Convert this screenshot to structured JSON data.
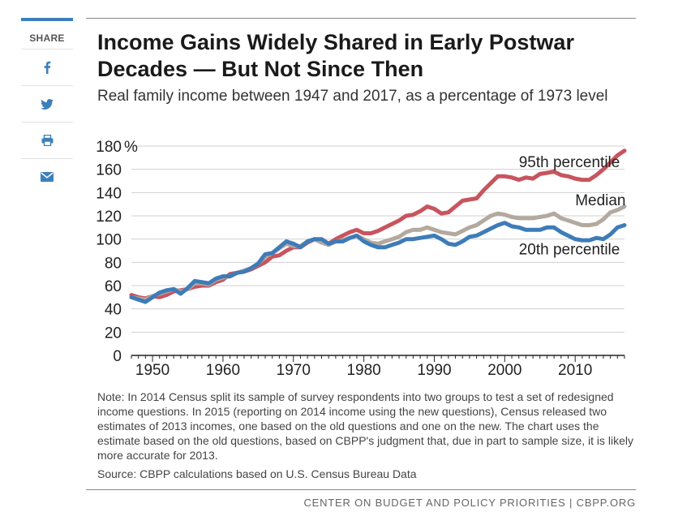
{
  "share": {
    "label": "SHARE",
    "buttons": [
      {
        "name": "facebook-icon"
      },
      {
        "name": "twitter-icon"
      },
      {
        "name": "print-icon"
      },
      {
        "name": "email-icon"
      }
    ],
    "icon_color": "#3d7fb9"
  },
  "header": {
    "title": "Income Gains Widely Shared in Early Postwar Decades — But Not Since Then",
    "subtitle": "Real family income between 1947 and 2017, as a percentage of 1973 level"
  },
  "chart_data": {
    "type": "line",
    "xlim": [
      1947,
      2017
    ],
    "ylim": [
      0,
      180
    ],
    "xticks": [
      1950,
      1960,
      1970,
      1980,
      1990,
      2000,
      2010
    ],
    "yticks": [
      0,
      20,
      40,
      60,
      80,
      100,
      120,
      140,
      160,
      180
    ],
    "ytick_suffix": "%",
    "grid": "horizontal",
    "series": [
      {
        "name": "95th percentile",
        "color": "#c8545e",
        "x": [
          1947,
          1948,
          1949,
          1950,
          1951,
          1952,
          1953,
          1954,
          1955,
          1956,
          1957,
          1958,
          1959,
          1960,
          1961,
          1962,
          1963,
          1964,
          1965,
          1966,
          1967,
          1968,
          1969,
          1970,
          1971,
          1972,
          1973,
          1974,
          1975,
          1976,
          1977,
          1978,
          1979,
          1980,
          1981,
          1982,
          1983,
          1984,
          1985,
          1986,
          1987,
          1988,
          1989,
          1990,
          1991,
          1992,
          1993,
          1994,
          1995,
          1996,
          1997,
          1998,
          1999,
          2000,
          2001,
          2002,
          2003,
          2004,
          2005,
          2006,
          2007,
          2008,
          2009,
          2010,
          2011,
          2012,
          2013,
          2014,
          2015,
          2016,
          2017
        ],
        "values": [
          52,
          50,
          49,
          51,
          50,
          52,
          55,
          56,
          57,
          59,
          60,
          60,
          63,
          65,
          70,
          71,
          72,
          74,
          77,
          80,
          85,
          86,
          90,
          93,
          93,
          97,
          100,
          99,
          96,
          100,
          103,
          106,
          108,
          105,
          105,
          107,
          110,
          113,
          116,
          120,
          121,
          124,
          128,
          126,
          122,
          123,
          128,
          133,
          134,
          135,
          142,
          148,
          154,
          154,
          153,
          151,
          153,
          152,
          156,
          157,
          158,
          155,
          154,
          152,
          151,
          151,
          155,
          160,
          166,
          172,
          176
        ]
      },
      {
        "name": "Median",
        "color": "#b3a99e",
        "x": [
          1947,
          1948,
          1949,
          1950,
          1951,
          1952,
          1953,
          1954,
          1955,
          1956,
          1957,
          1958,
          1959,
          1960,
          1961,
          1962,
          1963,
          1964,
          1965,
          1966,
          1967,
          1968,
          1969,
          1970,
          1971,
          1972,
          1973,
          1974,
          1975,
          1976,
          1977,
          1978,
          1979,
          1980,
          1981,
          1982,
          1983,
          1984,
          1985,
          1986,
          1987,
          1988,
          1989,
          1990,
          1991,
          1992,
          1993,
          1994,
          1995,
          1996,
          1997,
          1998,
          1999,
          2000,
          2001,
          2002,
          2003,
          2004,
          2005,
          2006,
          2007,
          2008,
          2009,
          2010,
          2011,
          2012,
          2013,
          2014,
          2015,
          2016,
          2017
        ],
        "values": [
          50,
          49,
          48,
          51,
          53,
          55,
          57,
          55,
          57,
          62,
          62,
          61,
          65,
          67,
          68,
          71,
          73,
          75,
          79,
          85,
          88,
          92,
          96,
          94,
          94,
          98,
          100,
          97,
          95,
          98,
          99,
          101,
          103,
          100,
          97,
          96,
          98,
          100,
          102,
          106,
          108,
          108,
          110,
          108,
          106,
          105,
          104,
          107,
          110,
          112,
          116,
          120,
          122,
          121,
          119,
          118,
          118,
          118,
          119,
          120,
          122,
          118,
          116,
          114,
          112,
          112,
          113,
          117,
          123,
          125,
          128
        ]
      },
      {
        "name": "20th percentile",
        "color": "#3e7cb8",
        "x": [
          1947,
          1948,
          1949,
          1950,
          1951,
          1952,
          1953,
          1954,
          1955,
          1956,
          1957,
          1958,
          1959,
          1960,
          1961,
          1962,
          1963,
          1964,
          1965,
          1966,
          1967,
          1968,
          1969,
          1970,
          1971,
          1972,
          1973,
          1974,
          1975,
          1976,
          1977,
          1978,
          1979,
          1980,
          1981,
          1982,
          1983,
          1984,
          1985,
          1986,
          1987,
          1988,
          1989,
          1990,
          1991,
          1992,
          1993,
          1994,
          1995,
          1996,
          1997,
          1998,
          1999,
          2000,
          2001,
          2002,
          2003,
          2004,
          2005,
          2006,
          2007,
          2008,
          2009,
          2010,
          2011,
          2012,
          2013,
          2014,
          2015,
          2016,
          2017
        ],
        "values": [
          50,
          48,
          46,
          50,
          54,
          56,
          57,
          53,
          58,
          64,
          63,
          62,
          66,
          68,
          68,
          71,
          72,
          75,
          79,
          87,
          88,
          93,
          98,
          96,
          93,
          98,
          100,
          100,
          96,
          98,
          98,
          101,
          103,
          98,
          95,
          93,
          93,
          95,
          97,
          100,
          100,
          101,
          102,
          103,
          100,
          96,
          95,
          98,
          102,
          103,
          106,
          109,
          112,
          114,
          111,
          110,
          108,
          108,
          108,
          110,
          110,
          106,
          103,
          100,
          99,
          99,
          101,
          100,
          104,
          110,
          112
        ]
      }
    ],
    "labels": [
      {
        "text": "95th percentile",
        "x": 2002,
        "y": 162
      },
      {
        "text": "Median",
        "x": 2010,
        "y": 129
      },
      {
        "text": "20th percentile",
        "x": 2002,
        "y": 87
      }
    ]
  },
  "notes": {
    "note": "Note: In 2014 Census split its sample of survey respondents into two groups to test a set of redesigned income questions.  In 2015 (reporting on 2014 income using the new questions), Census released two estimates of 2013 incomes, one based on the old questions and one on the new.  The chart uses the estimate based on the old questions, based on CBPP's judgment that, due in part to sample size, it is likely more accurate for 2013.",
    "source": "Source: CBPP calculations based on U.S. Census Bureau Data"
  },
  "footer": {
    "text": "CENTER ON BUDGET AND POLICY PRIORITIES | CBPP.ORG"
  }
}
